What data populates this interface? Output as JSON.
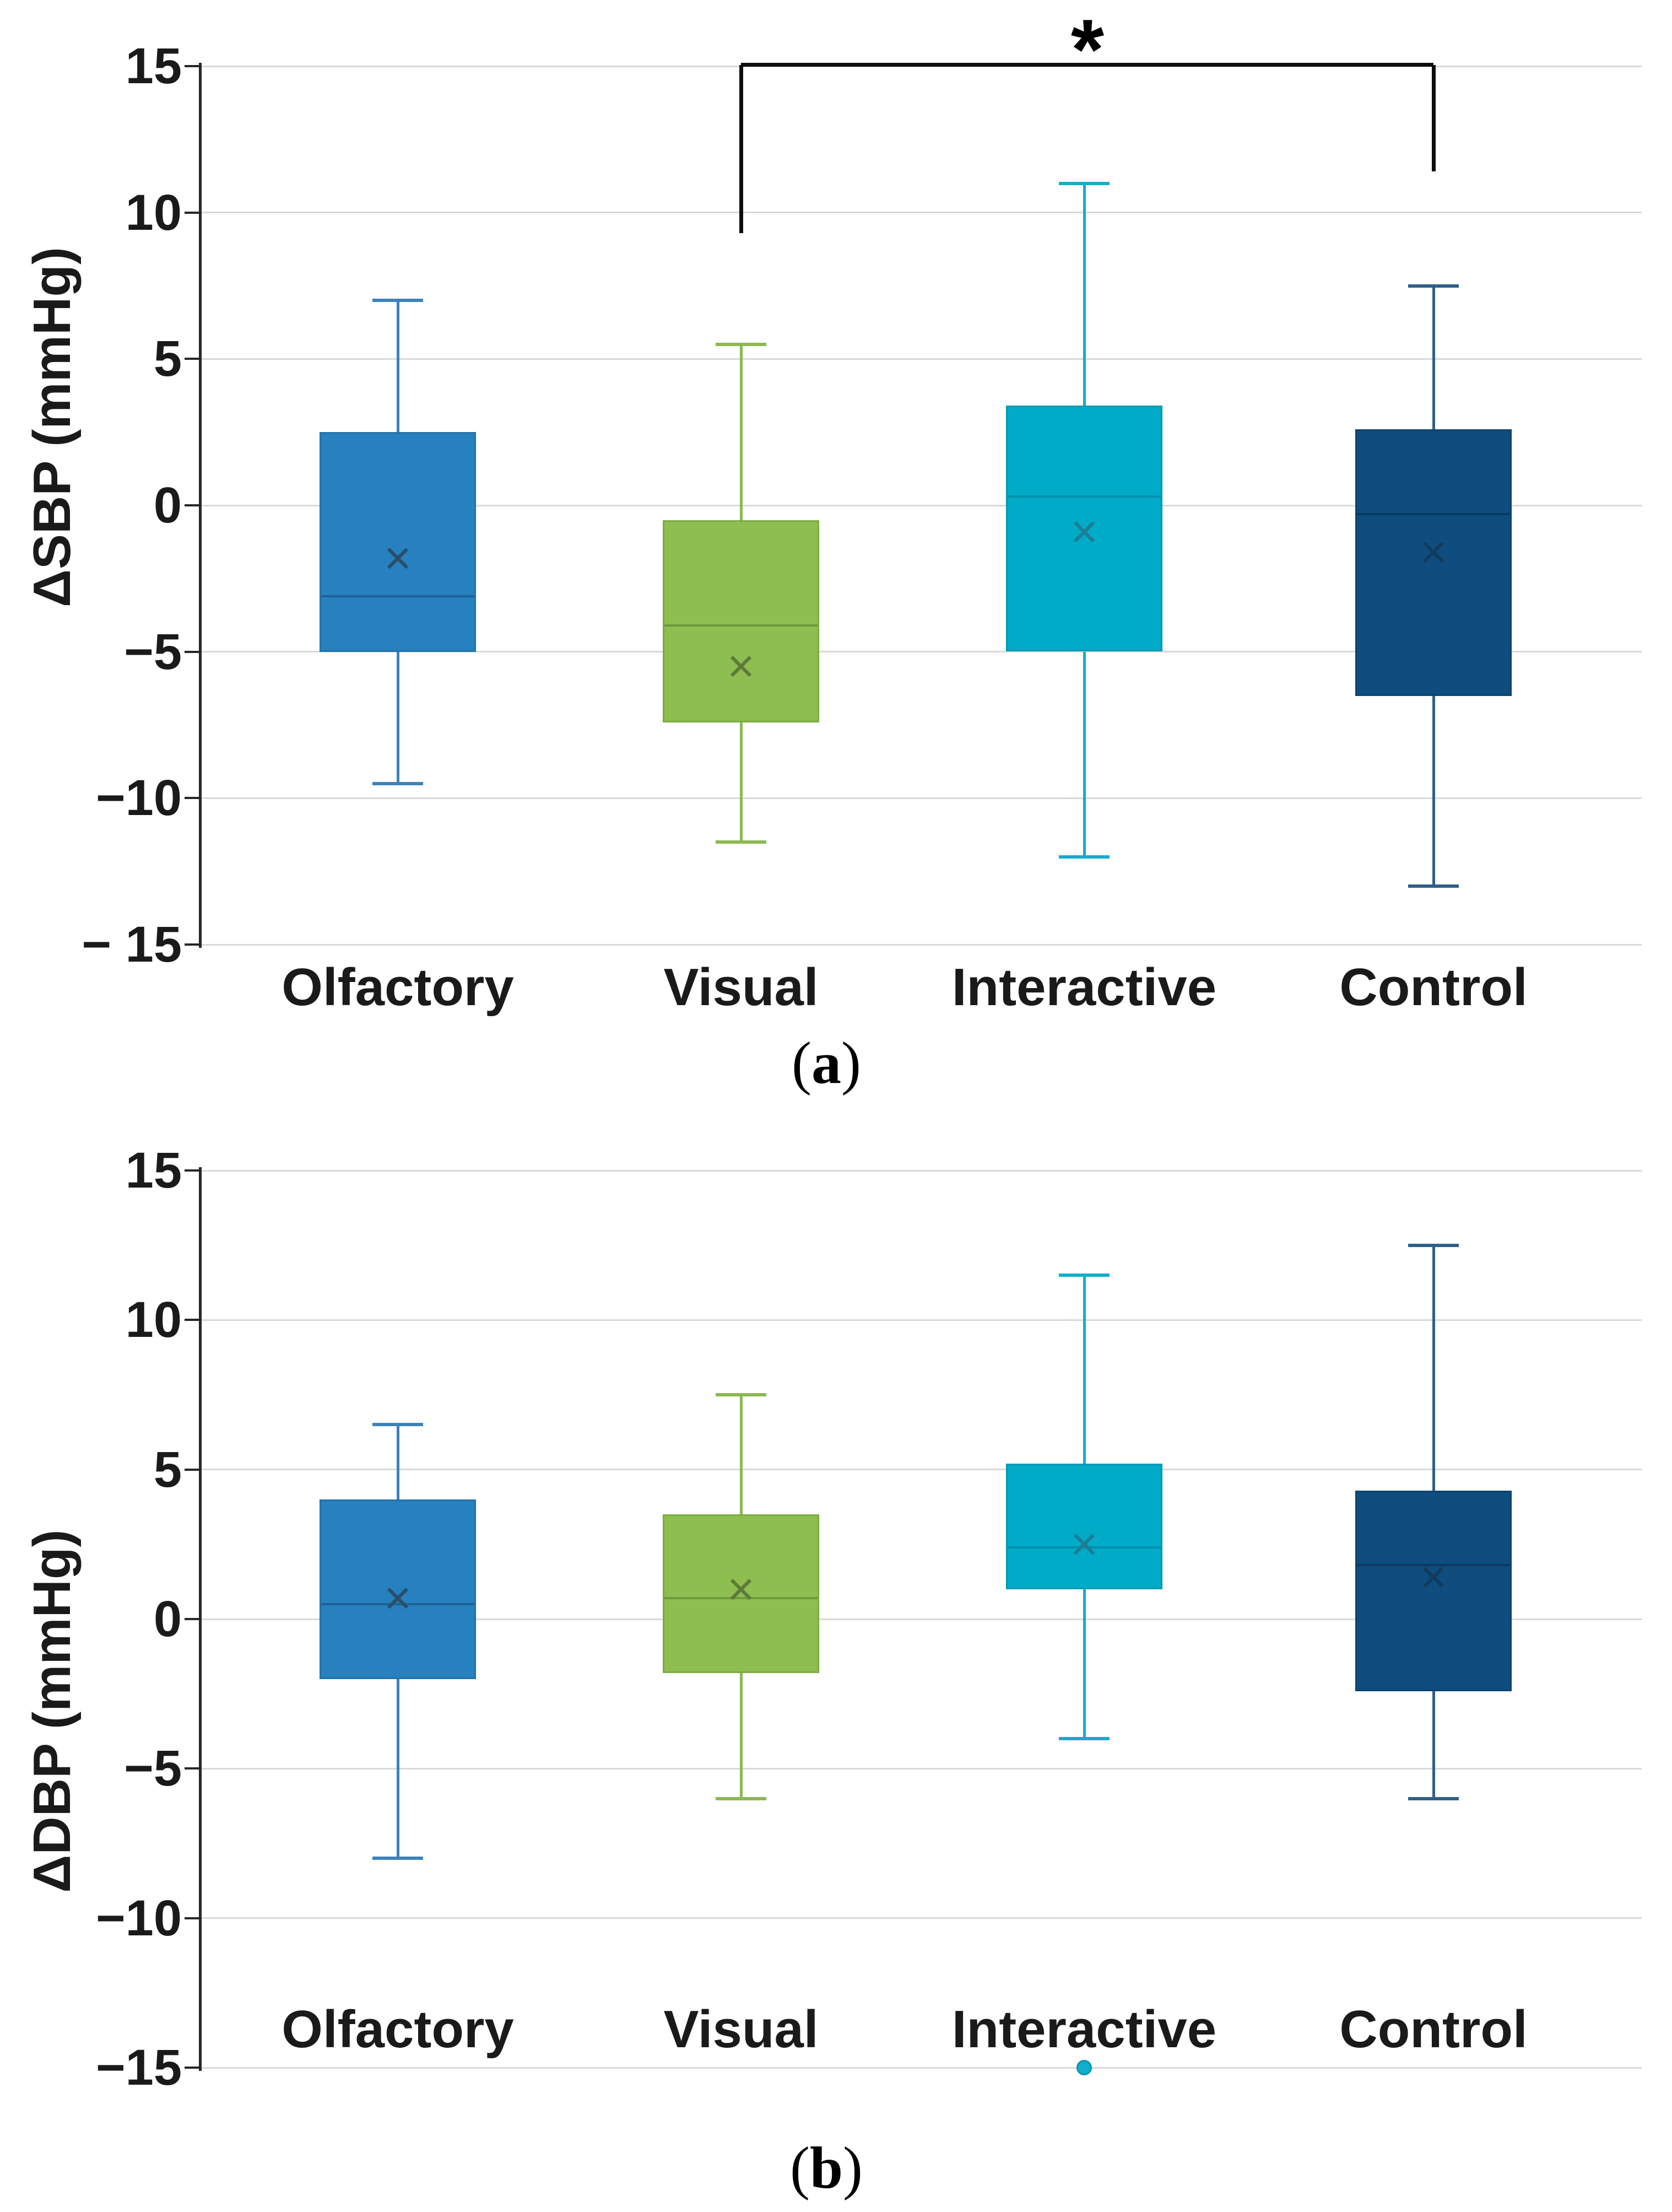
{
  "captions": {
    "a": {
      "open": "(",
      "letter": "a",
      "close": ")"
    },
    "b": {
      "open": "(",
      "letter": "b",
      "close": ")"
    }
  },
  "glyphs": {
    "mean_marker": "×"
  },
  "chart_data": [
    {
      "id": "a",
      "type": "box",
      "title": "",
      "xlabel": "",
      "ylabel": "ΔSBP (mmHg)",
      "ylim": [
        -15,
        15
      ],
      "grid": true,
      "legend": "none",
      "yticks": [
        15,
        10,
        5,
        0,
        -5,
        -10,
        -15
      ],
      "ytick_labels": [
        "15",
        "10",
        "5",
        "0",
        "−5",
        "−10",
        "− 15"
      ],
      "categories": [
        "Olfactory",
        "Visual",
        "Interactive",
        "Control"
      ],
      "series": [
        {
          "name": "Olfactory",
          "whisker_low": -9.5,
          "q1": -5.0,
          "median": -3.1,
          "q3": 2.5,
          "whisker_high": 7.0,
          "mean": -1.8,
          "fill": "#2681BE",
          "border": "#2272AB",
          "median_color": "#1D6396",
          "whisker_color": "#3D82B8",
          "mean_color": "#2B4D68"
        },
        {
          "name": "Visual",
          "whisker_low": -11.5,
          "q1": -7.4,
          "median": -4.1,
          "q3": -0.5,
          "whisker_high": 5.5,
          "mean": -5.5,
          "fill": "#8DBE4F",
          "border": "#7CAB41",
          "median_color": "#6E9A3A",
          "whisker_color": "#8CB850",
          "mean_color": "#5D7A3C"
        },
        {
          "name": "Interactive",
          "whisker_low": -12.0,
          "q1": -5.0,
          "median": 0.3,
          "q3": 3.4,
          "whisker_high": 11.0,
          "mean": -0.9,
          "fill": "#00ABC8",
          "border": "#009BB6",
          "median_color": "#0090A8",
          "whisker_color": "#16ACC9",
          "mean_color": "#1D7D93"
        },
        {
          "name": "Control",
          "whisker_low": -13.0,
          "q1": -6.5,
          "median": -0.3,
          "q3": 2.6,
          "whisker_high": 7.5,
          "mean": -1.6,
          "fill": "#0E4D7E",
          "border": "#0C4370",
          "median_color": "#0A3A61",
          "whisker_color": "#2E5F88",
          "mean_color": "#123B5C"
        }
      ],
      "significance": {
        "from": "Visual",
        "to": "Control",
        "label": "*",
        "bar_value": 15,
        "left_drop_to": 9.3,
        "right_drop_to": 11.4,
        "color": "#0d0d0d"
      }
    },
    {
      "id": "b",
      "type": "box",
      "title": "",
      "xlabel": "",
      "ylabel": "ΔDBP (mmHg)",
      "ylim": [
        -15,
        15
      ],
      "grid": true,
      "legend": "none",
      "yticks": [
        15,
        10,
        5,
        0,
        -5,
        -10,
        -15
      ],
      "ytick_labels": [
        "15",
        "10",
        "5",
        "0",
        "−5",
        "−10",
        "−15"
      ],
      "categories": [
        "Olfactory",
        "Visual",
        "Interactive",
        "Control"
      ],
      "series": [
        {
          "name": "Olfactory",
          "whisker_low": -8.0,
          "q1": -2.0,
          "median": 0.5,
          "q3": 4.0,
          "whisker_high": 6.5,
          "mean": 0.7,
          "fill": "#2681BE",
          "border": "#2272AB",
          "median_color": "#1D6396",
          "whisker_color": "#3D82B8",
          "mean_color": "#2B4D68"
        },
        {
          "name": "Visual",
          "whisker_low": -6.0,
          "q1": -1.8,
          "median": 0.7,
          "q3": 3.5,
          "whisker_high": 7.5,
          "mean": 1.0,
          "fill": "#8DBE4F",
          "border": "#7CAB41",
          "median_color": "#6E9A3A",
          "whisker_color": "#8CB850",
          "mean_color": "#5D7A3C"
        },
        {
          "name": "Interactive",
          "whisker_low": -4.0,
          "q1": 1.0,
          "median": 2.4,
          "q3": 5.2,
          "whisker_high": 11.5,
          "mean": 2.5,
          "fill": "#00ABC8",
          "border": "#009BB6",
          "median_color": "#0090A8",
          "whisker_color": "#16ACC9",
          "mean_color": "#1D7D93"
        },
        {
          "name": "Control",
          "whisker_low": -6.0,
          "q1": -2.4,
          "median": 1.8,
          "q3": 4.3,
          "whisker_high": 12.5,
          "mean": 1.4,
          "fill": "#0E4D7E",
          "border": "#0C4370",
          "median_color": "#0A3A61",
          "whisker_color": "#2E5F88",
          "mean_color": "#123B5C"
        }
      ],
      "outliers": [
        {
          "category": "Interactive",
          "value": -15.0,
          "fill": "#0FAFCC",
          "border": "#0795B3"
        }
      ]
    }
  ],
  "style_colors": {
    "gridline": "#D9D9D9",
    "axis": "#262626",
    "background": "#FFFFFF"
  }
}
